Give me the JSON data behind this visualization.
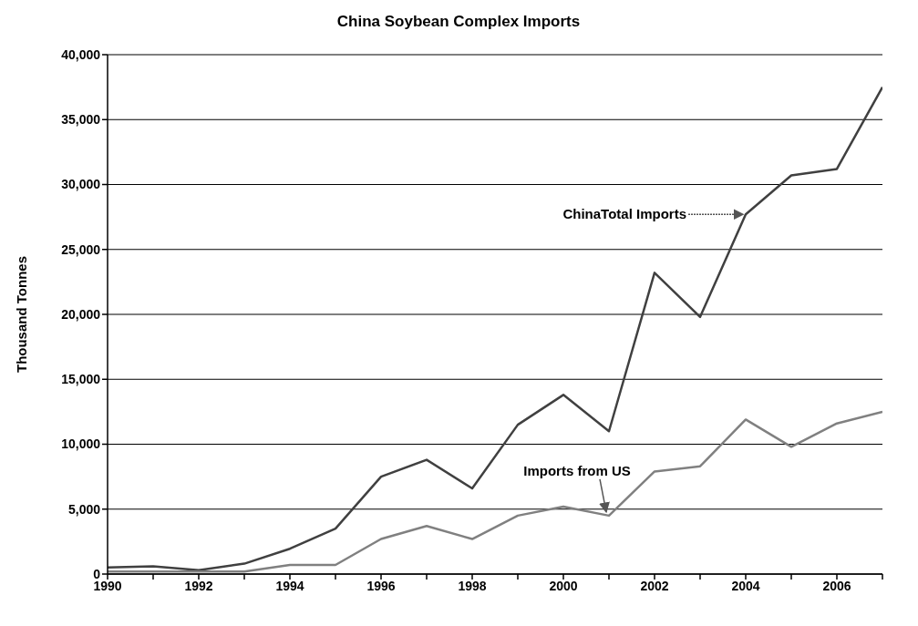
{
  "chart_data": {
    "type": "line",
    "title": "China Soybean Complex Imports",
    "ylabel": "Thousand Tonnes",
    "x": [
      1990,
      1991,
      1992,
      1993,
      1994,
      1995,
      1996,
      1997,
      1998,
      1999,
      2000,
      2001,
      2002,
      2003,
      2004,
      2005,
      2006,
      2007
    ],
    "series": [
      {
        "color": "#404040",
        "values": [
          500,
          600,
          300,
          800,
          1950,
          3500,
          7500,
          8800,
          6600,
          11500,
          13800,
          11000,
          23200,
          19800,
          27700,
          30700,
          31200,
          37500
        ]
      },
      {
        "color": "#808080",
        "values": [
          200,
          200,
          200,
          200,
          700,
          700,
          2700,
          3700,
          2700,
          4500,
          5200,
          4500,
          7900,
          8300,
          11900,
          9800,
          11600,
          12500
        ]
      }
    ],
    "annotations": [
      {
        "text": "ChinaTotal Imports",
        "x": 2004,
        "y": 27700
      },
      {
        "text": "Imports from US",
        "x": 2001,
        "y": 4500
      }
    ],
    "xlim": [
      1990,
      2007
    ],
    "xticks": [
      1990,
      {
        "value": 1991,
        "label": null
      },
      1992,
      {
        "value": 1993,
        "label": null
      },
      1994,
      {
        "value": 1995,
        "label": null
      },
      1996,
      {
        "value": 1997,
        "label": null
      },
      1998,
      {
        "value": 1999,
        "label": null
      },
      2000,
      {
        "value": 2001,
        "label": null
      },
      2002,
      {
        "value": 2003,
        "label": null
      },
      2004,
      {
        "value": 2005,
        "label": null
      },
      2006,
      {
        "value": 2007,
        "label": null
      }
    ],
    "ylim": [
      0,
      40000
    ],
    "yticks": [
      {
        "value": 0,
        "label": "0"
      },
      {
        "value": 5000,
        "label": "5,000"
      },
      {
        "value": 10000,
        "label": "10,000"
      },
      {
        "value": 15000,
        "label": "15,000"
      },
      {
        "value": 20000,
        "label": "20,000"
      },
      {
        "value": 25000,
        "label": "25,000"
      },
      {
        "value": 30000,
        "label": "30,000"
      },
      {
        "value": 35000,
        "label": "35,000"
      },
      {
        "value": 40000,
        "label": "40,000"
      }
    ],
    "grid": "y",
    "marker": "none",
    "line_style": "solid"
  }
}
